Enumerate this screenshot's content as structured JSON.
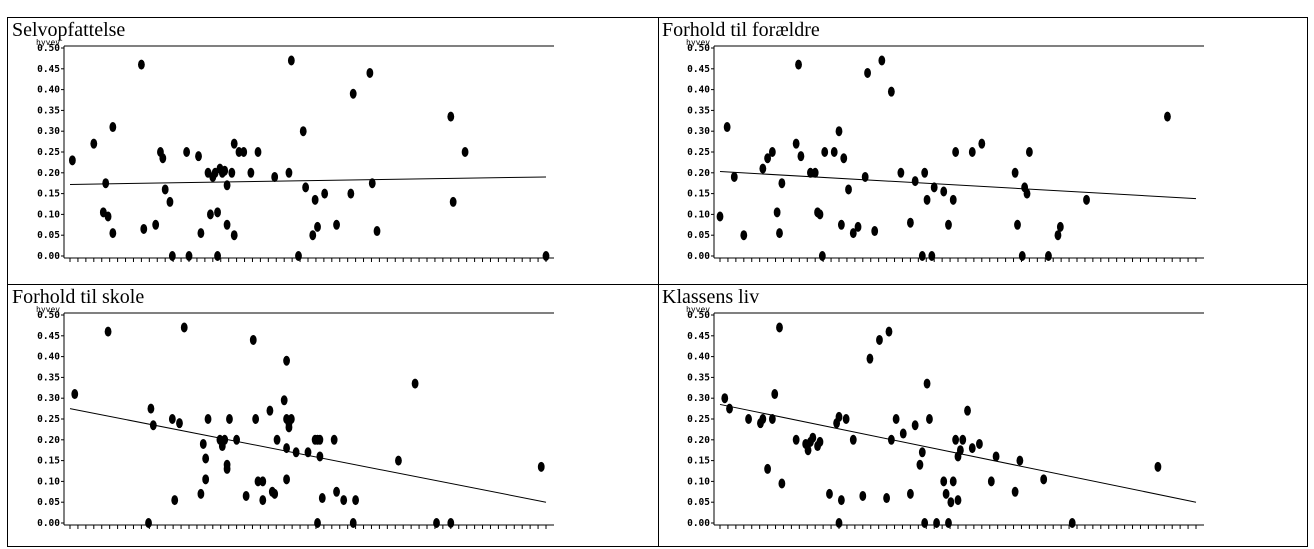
{
  "panels": [
    {
      "title": "Selvopfattelse"
    },
    {
      "title": "Forhold til forældre"
    },
    {
      "title": "Forhold til skole"
    },
    {
      "title": "Klassens liv"
    }
  ],
  "chart_data": [
    {
      "type": "scatter",
      "title": "Selvopfattelse",
      "ylabel": "hyvev",
      "xlim": [
        0,
        100
      ],
      "ylim": [
        0,
        0.5
      ],
      "yticks": [
        "0.00",
        "0.05",
        "0.10",
        "0.15",
        "0.20",
        "0.25",
        "0.30",
        "0.35",
        "0.40",
        "0.45",
        "0.50"
      ],
      "points": [
        [
          0.5,
          0.23
        ],
        [
          5,
          0.27
        ],
        [
          7,
          0.105
        ],
        [
          7.5,
          0.175
        ],
        [
          8,
          0.095
        ],
        [
          9,
          0.055
        ],
        [
          9,
          0.31
        ],
        [
          15,
          0.46
        ],
        [
          15.5,
          0.065
        ],
        [
          18,
          0.075
        ],
        [
          19,
          0.25
        ],
        [
          19.5,
          0.235
        ],
        [
          20,
          0.16
        ],
        [
          21,
          0.13
        ],
        [
          21.5,
          0.0
        ],
        [
          24.5,
          0.25
        ],
        [
          25,
          0.0
        ],
        [
          27,
          0.24
        ],
        [
          27.5,
          0.055
        ],
        [
          29,
          0.2
        ],
        [
          29.5,
          0.1
        ],
        [
          30,
          0.19
        ],
        [
          30.5,
          0.2
        ],
        [
          31,
          0.105
        ],
        [
          31,
          0.0
        ],
        [
          31.5,
          0.21
        ],
        [
          32,
          0.2
        ],
        [
          32.5,
          0.205
        ],
        [
          33,
          0.17
        ],
        [
          33,
          0.075
        ],
        [
          34,
          0.2
        ],
        [
          34.5,
          0.27
        ],
        [
          34.5,
          0.05
        ],
        [
          35.5,
          0.25
        ],
        [
          36.5,
          0.25
        ],
        [
          38,
          0.2
        ],
        [
          39.5,
          0.25
        ],
        [
          43,
          0.19
        ],
        [
          46,
          0.2
        ],
        [
          46.5,
          0.47
        ],
        [
          48,
          0.0
        ],
        [
          49,
          0.3
        ],
        [
          49.5,
          0.165
        ],
        [
          51,
          0.05
        ],
        [
          51.5,
          0.135
        ],
        [
          52,
          0.07
        ],
        [
          53.5,
          0.15
        ],
        [
          56,
          0.075
        ],
        [
          59,
          0.15
        ],
        [
          59.5,
          0.39
        ],
        [
          63,
          0.44
        ],
        [
          63.5,
          0.175
        ],
        [
          64.5,
          0.06
        ],
        [
          80,
          0.335
        ],
        [
          80.5,
          0.13
        ],
        [
          83,
          0.25
        ],
        [
          100,
          0.0
        ]
      ],
      "trend": [
        [
          0,
          0.172
        ],
        [
          100,
          0.19
        ]
      ]
    },
    {
      "type": "scatter",
      "title": "Forhold til forældre",
      "ylabel": "hyvev",
      "xlim": [
        0,
        100
      ],
      "ylim": [
        0,
        0.5
      ],
      "yticks": [
        "0.00",
        "0.05",
        "0.10",
        "0.15",
        "0.20",
        "0.25",
        "0.30",
        "0.35",
        "0.40",
        "0.45",
        "0.50"
      ],
      "points": [
        [
          0,
          0.095
        ],
        [
          1.5,
          0.31
        ],
        [
          3,
          0.19
        ],
        [
          5,
          0.05
        ],
        [
          9,
          0.21
        ],
        [
          10,
          0.235
        ],
        [
          11,
          0.25
        ],
        [
          12,
          0.105
        ],
        [
          12.5,
          0.055
        ],
        [
          13,
          0.175
        ],
        [
          16,
          0.27
        ],
        [
          16.5,
          0.46
        ],
        [
          17,
          0.24
        ],
        [
          19,
          0.2
        ],
        [
          20,
          0.2
        ],
        [
          20.5,
          0.105
        ],
        [
          21,
          0.1
        ],
        [
          21.5,
          0.0
        ],
        [
          22,
          0.25
        ],
        [
          24,
          0.25
        ],
        [
          25,
          0.3
        ],
        [
          25.5,
          0.075
        ],
        [
          26,
          0.235
        ],
        [
          27,
          0.16
        ],
        [
          28,
          0.055
        ],
        [
          29,
          0.07
        ],
        [
          30.5,
          0.19
        ],
        [
          31,
          0.44
        ],
        [
          32.5,
          0.06
        ],
        [
          34,
          0.47
        ],
        [
          36,
          0.395
        ],
        [
          38,
          0.2
        ],
        [
          40,
          0.08
        ],
        [
          41,
          0.18
        ],
        [
          42.5,
          0.0
        ],
        [
          43,
          0.2
        ],
        [
          43.5,
          0.135
        ],
        [
          44.5,
          0.0
        ],
        [
          45,
          0.165
        ],
        [
          47,
          0.155
        ],
        [
          48,
          0.075
        ],
        [
          49,
          0.135
        ],
        [
          49.5,
          0.25
        ],
        [
          53,
          0.25
        ],
        [
          55,
          0.27
        ],
        [
          62,
          0.2
        ],
        [
          62.5,
          0.075
        ],
        [
          63.5,
          0.0
        ],
        [
          64,
          0.165
        ],
        [
          64.5,
          0.15
        ],
        [
          65,
          0.25
        ],
        [
          69,
          0.0
        ],
        [
          71,
          0.05
        ],
        [
          71.5,
          0.07
        ],
        [
          77,
          0.135
        ],
        [
          94,
          0.335
        ]
      ],
      "trend": [
        [
          0,
          0.203
        ],
        [
          100,
          0.138
        ]
      ]
    },
    {
      "type": "scatter",
      "title": "Forhold til skole",
      "ylabel": "hyvev",
      "xlim": [
        0,
        100
      ],
      "ylim": [
        0,
        0.5
      ],
      "yticks": [
        "0.00",
        "0.05",
        "0.10",
        "0.15",
        "0.20",
        "0.25",
        "0.30",
        "0.35",
        "0.40",
        "0.45",
        "0.50"
      ],
      "points": [
        [
          1,
          0.31
        ],
        [
          8,
          0.46
        ],
        [
          16.5,
          0.0
        ],
        [
          17,
          0.275
        ],
        [
          17.5,
          0.235
        ],
        [
          21.5,
          0.25
        ],
        [
          22,
          0.055
        ],
        [
          23,
          0.24
        ],
        [
          24,
          0.47
        ],
        [
          27.5,
          0.07
        ],
        [
          28,
          0.19
        ],
        [
          28.5,
          0.105
        ],
        [
          28.5,
          0.155
        ],
        [
          29,
          0.25
        ],
        [
          31.5,
          0.2
        ],
        [
          32,
          0.185
        ],
        [
          32.5,
          0.2
        ],
        [
          33,
          0.14
        ],
        [
          33,
          0.13
        ],
        [
          33.5,
          0.25
        ],
        [
          35,
          0.2
        ],
        [
          37,
          0.065
        ],
        [
          38.5,
          0.44
        ],
        [
          39,
          0.25
        ],
        [
          39.5,
          0.1
        ],
        [
          40.5,
          0.1
        ],
        [
          40.5,
          0.055
        ],
        [
          42,
          0.27
        ],
        [
          42.5,
          0.075
        ],
        [
          43,
          0.07
        ],
        [
          43.5,
          0.2
        ],
        [
          45,
          0.295
        ],
        [
          45.5,
          0.105
        ],
        [
          45.5,
          0.18
        ],
        [
          45.5,
          0.25
        ],
        [
          45.5,
          0.39
        ],
        [
          46,
          0.23
        ],
        [
          46,
          0.24
        ],
        [
          46.5,
          0.25
        ],
        [
          47.5,
          0.17
        ],
        [
          50,
          0.17
        ],
        [
          51.5,
          0.2
        ],
        [
          52,
          0.2
        ],
        [
          52,
          0.0
        ],
        [
          52.5,
          0.2
        ],
        [
          52.5,
          0.16
        ],
        [
          53,
          0.06
        ],
        [
          55.5,
          0.2
        ],
        [
          56,
          0.075
        ],
        [
          57.5,
          0.055
        ],
        [
          59.5,
          0.0
        ],
        [
          60,
          0.055
        ],
        [
          69,
          0.15
        ],
        [
          72.5,
          0.335
        ],
        [
          77,
          0.0
        ],
        [
          80,
          0.0
        ],
        [
          99,
          0.135
        ]
      ],
      "trend": [
        [
          0,
          0.275
        ],
        [
          100,
          0.05
        ]
      ]
    },
    {
      "type": "scatter",
      "title": "Klassens liv",
      "ylabel": "hyvev",
      "xlim": [
        0,
        100
      ],
      "ylim": [
        0,
        0.5
      ],
      "yticks": [
        "0.00",
        "0.05",
        "0.10",
        "0.15",
        "0.20",
        "0.25",
        "0.30",
        "0.35",
        "0.40",
        "0.45",
        "0.50"
      ],
      "points": [
        [
          1,
          0.3
        ],
        [
          2,
          0.275
        ],
        [
          6,
          0.25
        ],
        [
          8.5,
          0.24
        ],
        [
          9,
          0.25
        ],
        [
          10,
          0.13
        ],
        [
          11,
          0.25
        ],
        [
          11.5,
          0.31
        ],
        [
          12.5,
          0.47
        ],
        [
          13,
          0.095
        ],
        [
          16,
          0.2
        ],
        [
          18,
          0.19
        ],
        [
          18.5,
          0.175
        ],
        [
          19,
          0.195
        ],
        [
          19.5,
          0.205
        ],
        [
          20.5,
          0.185
        ],
        [
          21,
          0.195
        ],
        [
          23,
          0.07
        ],
        [
          24.5,
          0.24
        ],
        [
          25,
          0.0
        ],
        [
          25,
          0.255
        ],
        [
          25.5,
          0.055
        ],
        [
          26.5,
          0.25
        ],
        [
          28,
          0.2
        ],
        [
          30,
          0.065
        ],
        [
          31.5,
          0.395
        ],
        [
          33.5,
          0.44
        ],
        [
          35,
          0.06
        ],
        [
          35.5,
          0.46
        ],
        [
          36,
          0.2
        ],
        [
          37,
          0.25
        ],
        [
          38.5,
          0.215
        ],
        [
          40,
          0.07
        ],
        [
          41,
          0.235
        ],
        [
          42,
          0.14
        ],
        [
          42.5,
          0.17
        ],
        [
          43,
          0.0
        ],
        [
          43.5,
          0.335
        ],
        [
          44,
          0.25
        ],
        [
          45.5,
          0.0
        ],
        [
          47,
          0.1
        ],
        [
          47.5,
          0.07
        ],
        [
          48,
          0.0
        ],
        [
          48.5,
          0.05
        ],
        [
          49,
          0.1
        ],
        [
          49.5,
          0.2
        ],
        [
          50,
          0.16
        ],
        [
          50,
          0.055
        ],
        [
          50.5,
          0.175
        ],
        [
          51,
          0.2
        ],
        [
          52,
          0.27
        ],
        [
          53,
          0.18
        ],
        [
          54.5,
          0.19
        ],
        [
          57,
          0.1
        ],
        [
          58,
          0.16
        ],
        [
          62,
          0.075
        ],
        [
          63,
          0.15
        ],
        [
          68,
          0.105
        ],
        [
          74,
          0.0
        ],
        [
          92,
          0.135
        ]
      ],
      "trend": [
        [
          0,
          0.285
        ],
        [
          100,
          0.05
        ]
      ]
    }
  ]
}
